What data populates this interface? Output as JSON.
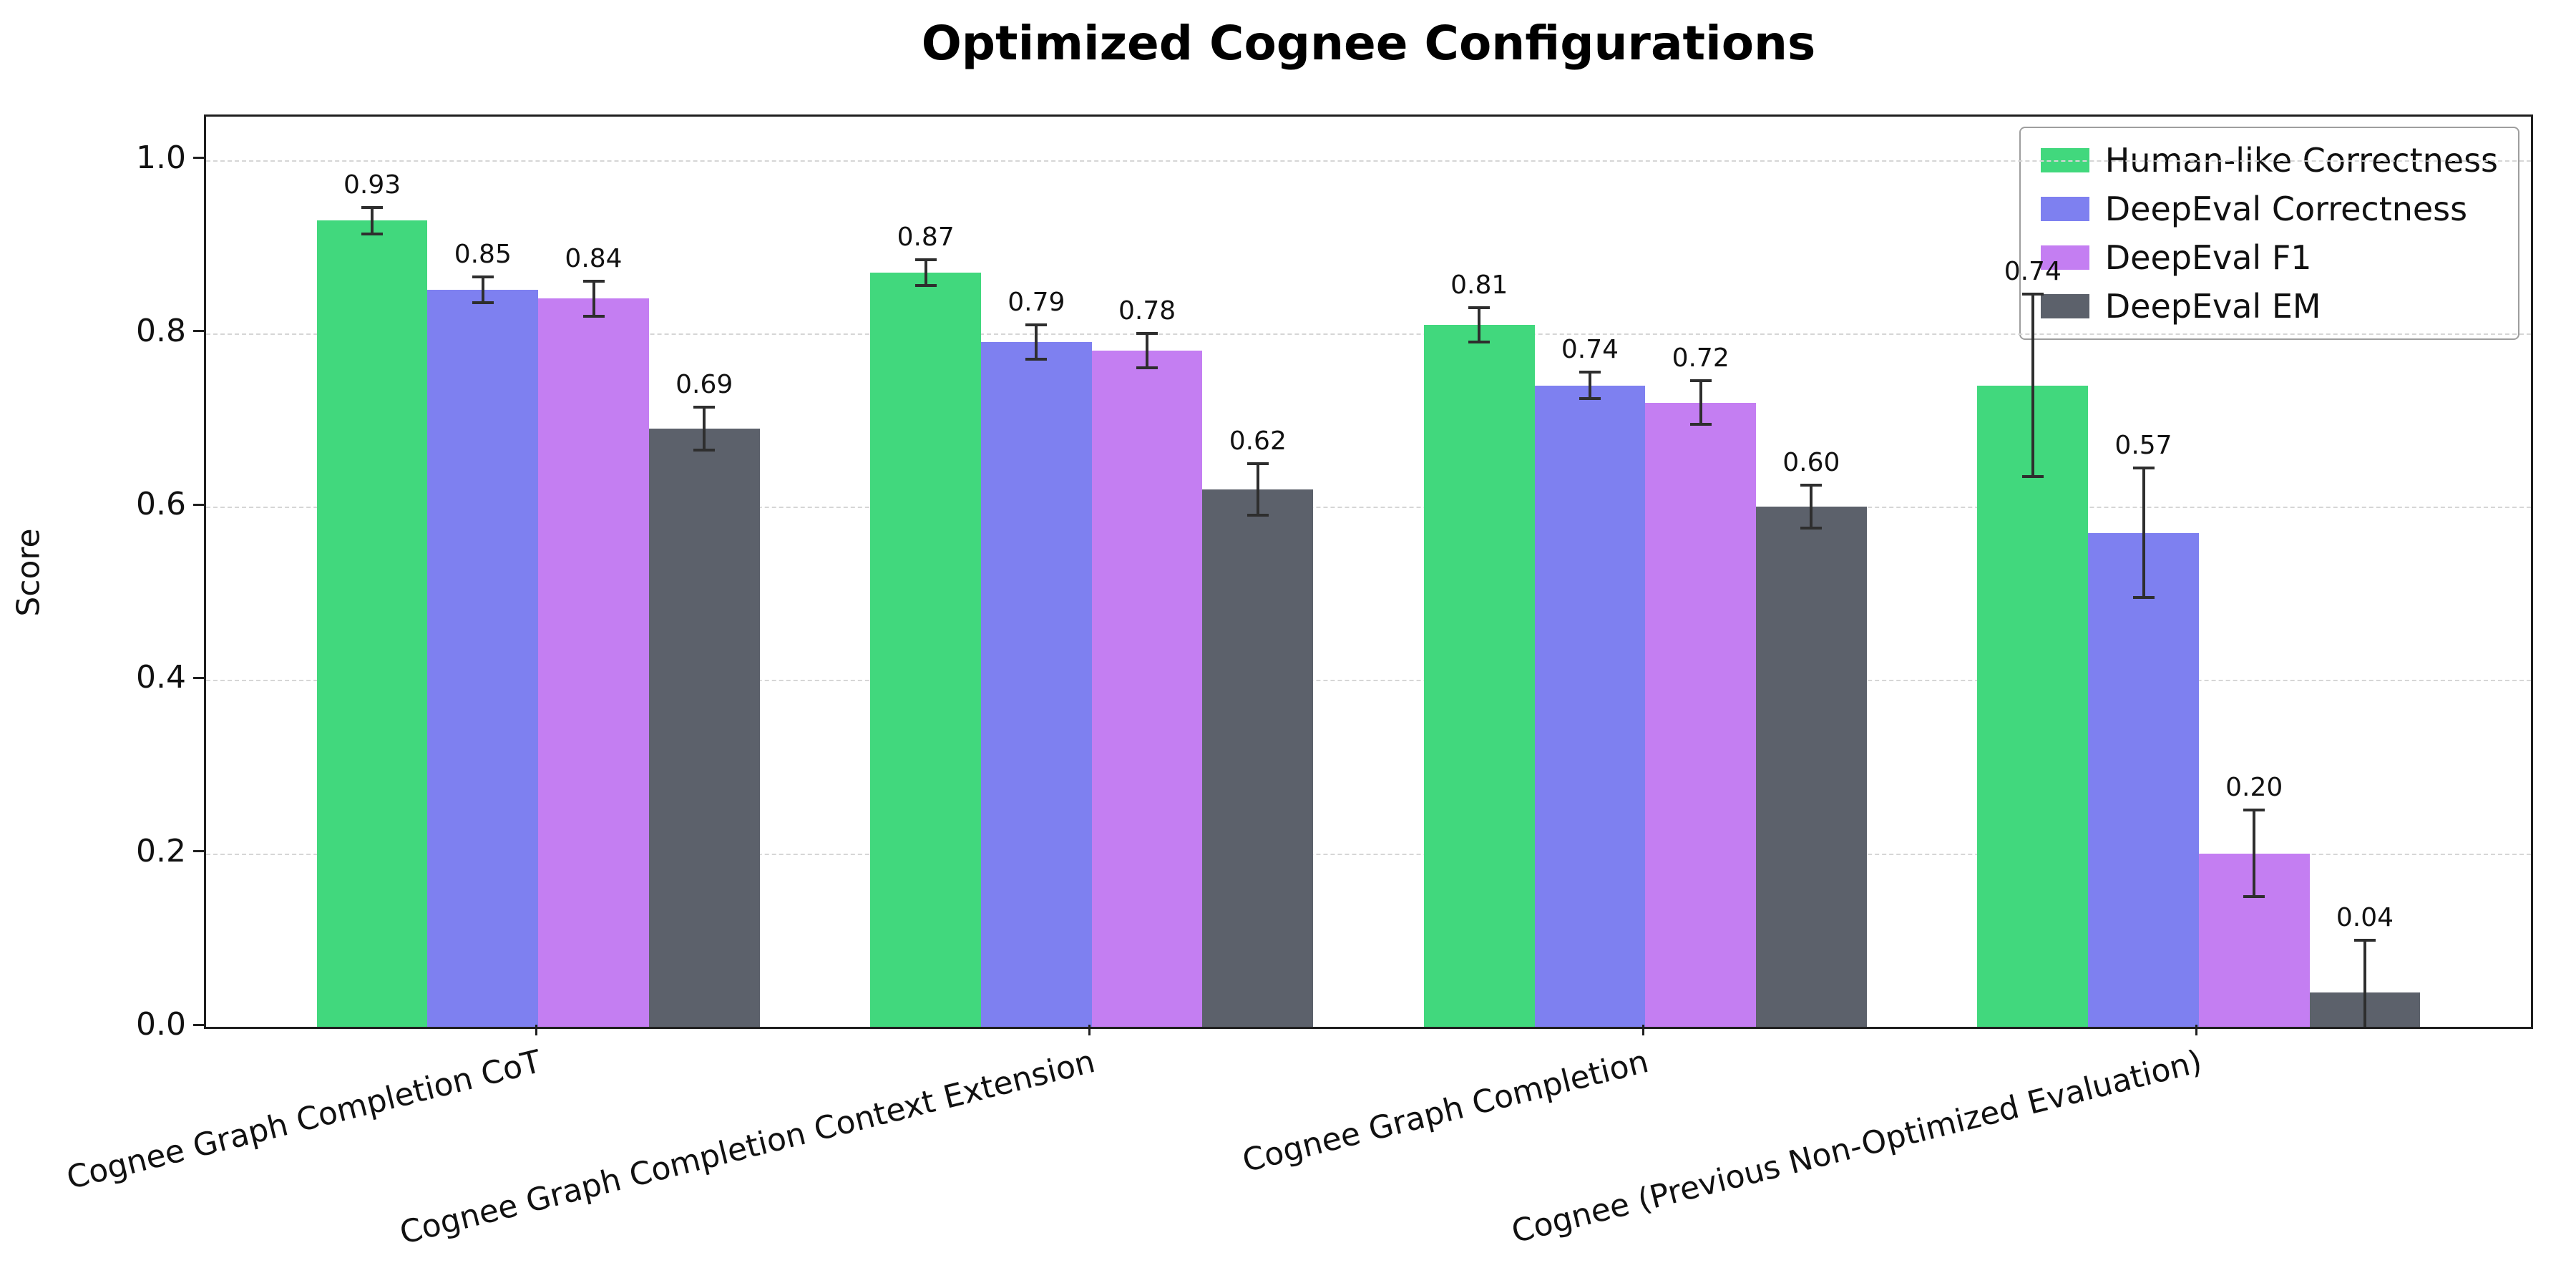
{
  "title": "Optimized Cognee Configurations",
  "ylabel": "Score",
  "chart_data": {
    "type": "bar",
    "title": "Optimized Cognee Configurations",
    "xlabel": "",
    "ylabel": "Score",
    "ylim": [
      0,
      1.05
    ],
    "xlim": [
      -0.6,
      3.6
    ],
    "yticks": [
      0.0,
      0.2,
      0.4,
      0.6,
      0.8,
      1.0
    ],
    "grid": "horizontal dashed",
    "legend_position": "upper right",
    "bar_width_data_units": 0.2,
    "value_label_decimals": 2,
    "categories": [
      "Cognee Graph Completion CoT",
      "Cognee Graph Completion Context Extension",
      "Cognee Graph Completion",
      "Cognee (Previous Non-Optimized Evaluation)"
    ],
    "series": [
      {
        "name": "Human-like Correctness",
        "color": "#41d87d",
        "values": [
          0.93,
          0.87,
          0.81,
          0.74
        ],
        "errors": [
          0.015,
          0.015,
          0.02,
          0.105
        ]
      },
      {
        "name": "DeepEval Correctness",
        "color": "#7e80f0",
        "values": [
          0.85,
          0.79,
          0.74,
          0.57
        ],
        "errors": [
          0.015,
          0.02,
          0.015,
          0.075
        ]
      },
      {
        "name": "DeepEval F1",
        "color": "#c47ef2",
        "values": [
          0.84,
          0.78,
          0.72,
          0.2
        ],
        "errors": [
          0.02,
          0.02,
          0.025,
          0.05
        ]
      },
      {
        "name": "DeepEval EM",
        "color": "#5c616b",
        "values": [
          0.69,
          0.62,
          0.6,
          0.04
        ],
        "errors": [
          0.025,
          0.03,
          0.025,
          0.06
        ]
      }
    ]
  }
}
